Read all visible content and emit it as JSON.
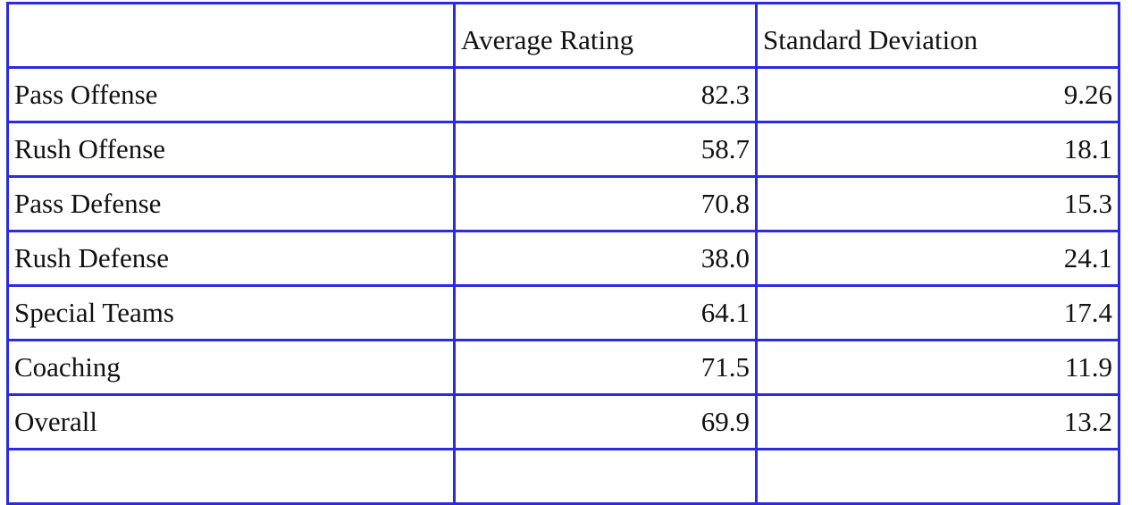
{
  "table": {
    "columns": [
      "Average Rating",
      "Standard Deviation"
    ],
    "rows": [
      [
        "Pass Offense",
        "82.3",
        "9.26"
      ],
      [
        "Rush Offense",
        "58.7",
        "18.1"
      ],
      [
        "Pass Defense",
        "70.8",
        "15.3"
      ],
      [
        "Rush Defense",
        "38.0",
        "24.1"
      ],
      [
        "Special Teams",
        "64.1",
        "17.4"
      ],
      [
        "Coaching",
        "71.5",
        "11.9"
      ],
      [
        "Overall",
        "69.9",
        "13.2"
      ]
    ]
  }
}
